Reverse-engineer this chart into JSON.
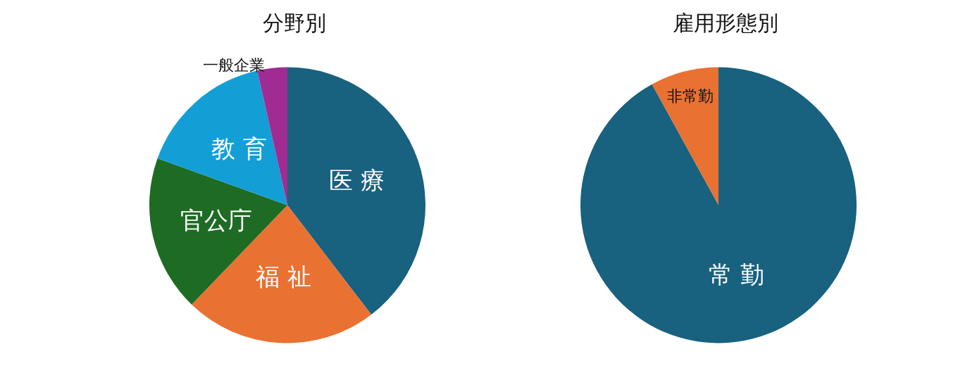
{
  "chart_data": [
    {
      "type": "pie",
      "title": "分野別",
      "categories": [
        "医 療",
        "福 祉",
        "官公庁",
        "教 育",
        "一般企業"
      ],
      "values": [
        39.6,
        22.6,
        18.3,
        16,
        3.5
      ],
      "colors": [
        "#18617f",
        "#e97132",
        "#1e6b24",
        "#139ed6",
        "#a02b93"
      ]
    },
    {
      "type": "pie",
      "title": "雇用形態別",
      "categories": [
        "常 勤",
        "非常勤"
      ],
      "values": [
        92,
        8
      ],
      "colors": [
        "#18617f",
        "#e97132"
      ]
    }
  ]
}
